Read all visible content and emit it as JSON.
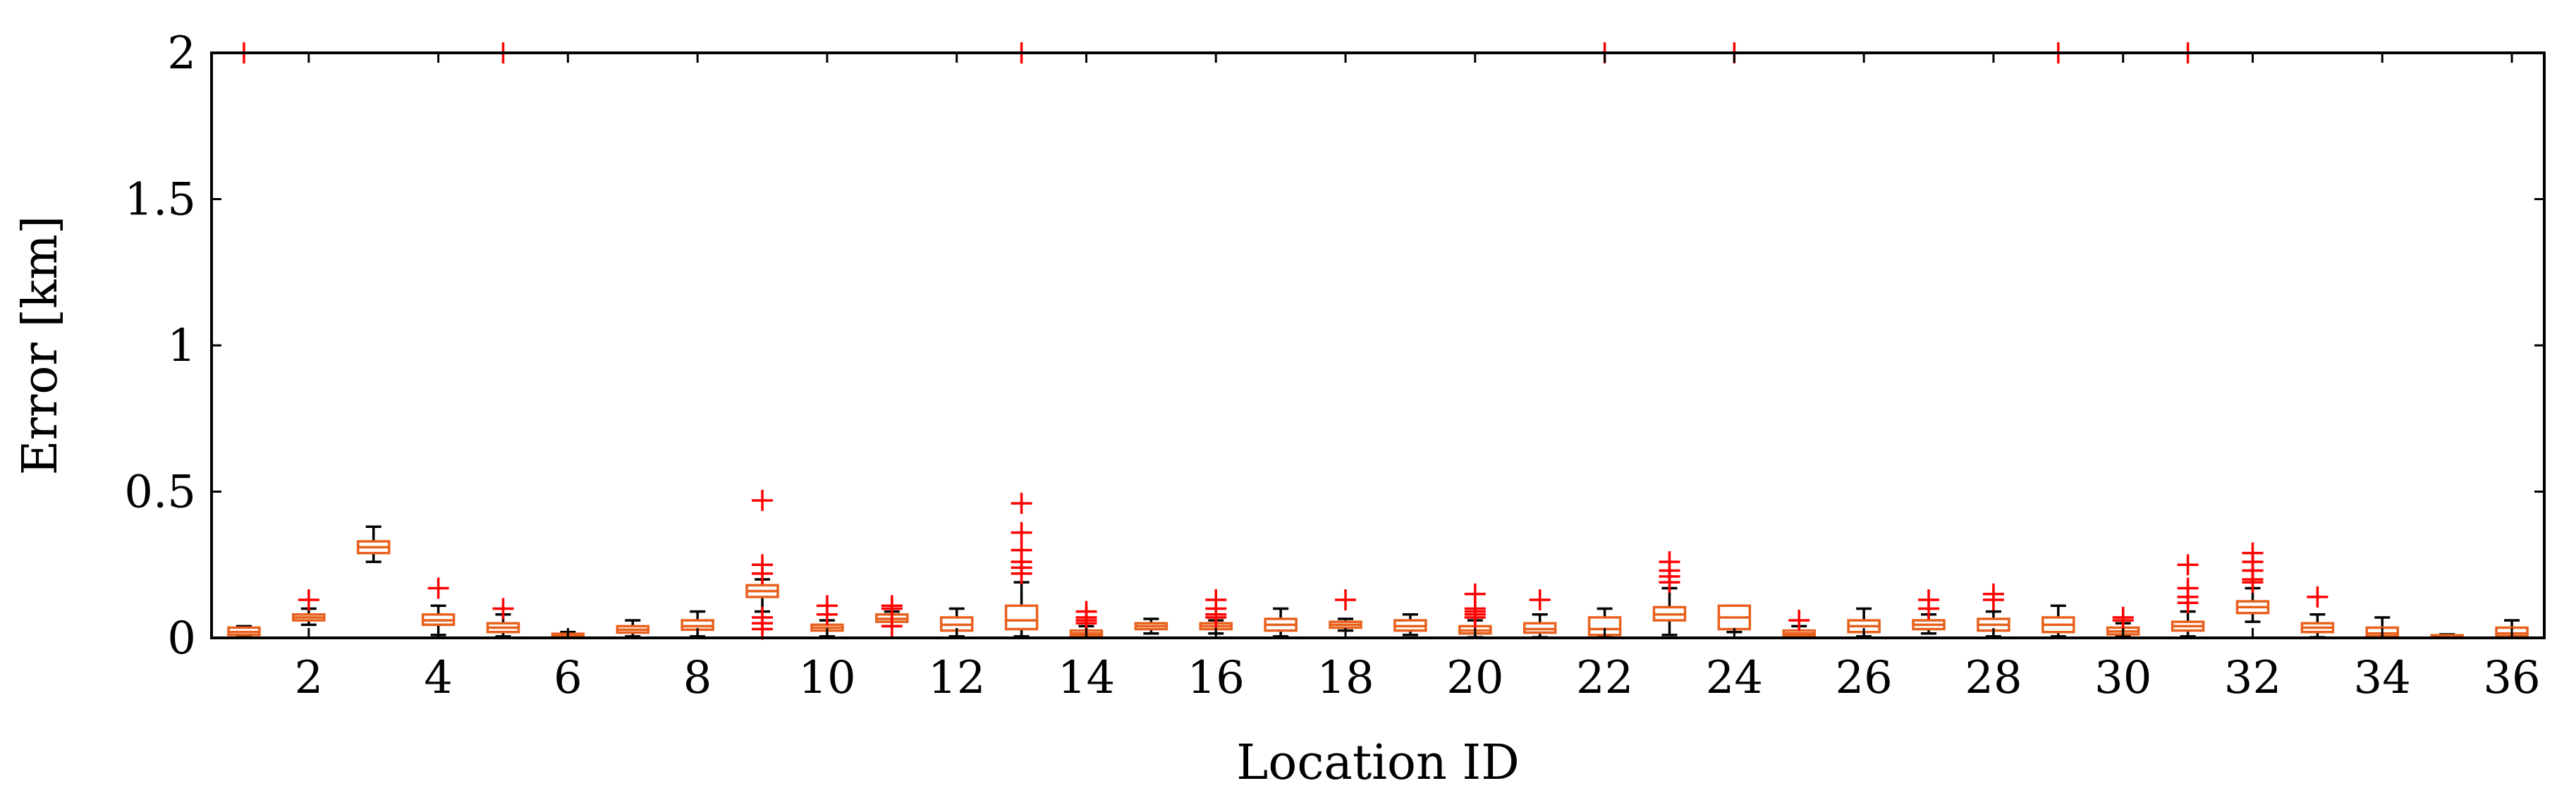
{
  "chart_data": {
    "type": "box",
    "title": "",
    "xlabel": "Location ID",
    "ylabel": "Error [km]",
    "xlim": [
      0.5,
      36.5
    ],
    "ylim": [
      0,
      2
    ],
    "x_ticks": [
      2,
      4,
      6,
      8,
      10,
      12,
      14,
      16,
      18,
      20,
      22,
      24,
      26,
      28,
      30,
      32,
      34,
      36
    ],
    "y_ticks": [
      0,
      0.5,
      1,
      1.5,
      2
    ],
    "y_tick_labels": [
      "0",
      "0.5",
      "1",
      "1.5",
      "2"
    ],
    "grid": false,
    "legend": "none",
    "colors": {
      "box": "#e8601c",
      "median": "#e8601c",
      "whisker": "#000000",
      "outlier": "#ff0000",
      "axis": "#000000"
    },
    "boxes": [
      {
        "id": 1,
        "lw": 0.005,
        "q1": 0.01,
        "median": 0.02,
        "q3": 0.035,
        "uw": 0.04,
        "outliers": [
          2.0
        ]
      },
      {
        "id": 2,
        "lw": 0.045,
        "q1": 0.06,
        "median": 0.07,
        "q3": 0.08,
        "uw": 0.1,
        "outliers": [
          0.13
        ]
      },
      {
        "id": 3,
        "lw": 0.26,
        "q1": 0.29,
        "median": 0.31,
        "q3": 0.33,
        "uw": 0.38,
        "outliers": []
      },
      {
        "id": 4,
        "lw": 0.01,
        "q1": 0.045,
        "median": 0.06,
        "q3": 0.08,
        "uw": 0.11,
        "outliers": [
          0.17
        ]
      },
      {
        "id": 5,
        "lw": 0.005,
        "q1": 0.02,
        "median": 0.035,
        "q3": 0.05,
        "uw": 0.08,
        "outliers": [
          0.1,
          2.0
        ]
      },
      {
        "id": 6,
        "lw": 0.002,
        "q1": 0.006,
        "median": 0.01,
        "q3": 0.014,
        "uw": 0.02,
        "outliers": []
      },
      {
        "id": 7,
        "lw": 0.005,
        "q1": 0.018,
        "median": 0.028,
        "q3": 0.04,
        "uw": 0.06,
        "outliers": []
      },
      {
        "id": 8,
        "lw": 0.005,
        "q1": 0.028,
        "median": 0.04,
        "q3": 0.06,
        "uw": 0.09,
        "outliers": []
      },
      {
        "id": 9,
        "lw": 0.09,
        "q1": 0.14,
        "median": 0.16,
        "q3": 0.18,
        "uw": 0.2,
        "outliers": [
          0.47,
          0.25,
          0.22,
          0.07,
          0.05,
          0.03
        ]
      },
      {
        "id": 10,
        "lw": 0.005,
        "q1": 0.025,
        "median": 0.035,
        "q3": 0.045,
        "uw": 0.06,
        "outliers": [
          0.11,
          0.08
        ]
      },
      {
        "id": 11,
        "lw": 0.04,
        "q1": 0.055,
        "median": 0.065,
        "q3": 0.08,
        "uw": 0.09,
        "outliers": [
          0.11,
          0.1,
          0.04
        ]
      },
      {
        "id": 12,
        "lw": 0.005,
        "q1": 0.025,
        "median": 0.045,
        "q3": 0.07,
        "uw": 0.1,
        "outliers": []
      },
      {
        "id": 13,
        "lw": 0.005,
        "q1": 0.03,
        "median": 0.06,
        "q3": 0.11,
        "uw": 0.19,
        "outliers": [
          2.0,
          0.46,
          0.36,
          0.3,
          0.26,
          0.24,
          0.22
        ]
      },
      {
        "id": 14,
        "lw": 0.002,
        "q1": 0.008,
        "median": 0.015,
        "q3": 0.025,
        "uw": 0.04,
        "outliers": [
          0.09,
          0.07,
          0.06,
          0.05
        ]
      },
      {
        "id": 15,
        "lw": 0.015,
        "q1": 0.03,
        "median": 0.04,
        "q3": 0.05,
        "uw": 0.065,
        "outliers": []
      },
      {
        "id": 16,
        "lw": 0.015,
        "q1": 0.03,
        "median": 0.04,
        "q3": 0.05,
        "uw": 0.06,
        "outliers": [
          0.13,
          0.1,
          0.08,
          0.07
        ]
      },
      {
        "id": 17,
        "lw": 0.005,
        "q1": 0.025,
        "median": 0.045,
        "q3": 0.065,
        "uw": 0.1,
        "outliers": []
      },
      {
        "id": 18,
        "lw": 0.025,
        "q1": 0.035,
        "median": 0.045,
        "q3": 0.055,
        "uw": 0.065,
        "outliers": [
          0.13
        ]
      },
      {
        "id": 19,
        "lw": 0.01,
        "q1": 0.025,
        "median": 0.04,
        "q3": 0.06,
        "uw": 0.08,
        "outliers": []
      },
      {
        "id": 20,
        "lw": 0.002,
        "q1": 0.015,
        "median": 0.025,
        "q3": 0.04,
        "uw": 0.06,
        "outliers": [
          0.15,
          0.1,
          0.09,
          0.08,
          0.07
        ]
      },
      {
        "id": 21,
        "lw": 0.002,
        "q1": 0.018,
        "median": 0.03,
        "q3": 0.05,
        "uw": 0.08,
        "outliers": [
          0.13
        ]
      },
      {
        "id": 22,
        "lw": 0.002,
        "q1": 0.01,
        "median": 0.03,
        "q3": 0.07,
        "uw": 0.1,
        "outliers": [
          2.0
        ]
      },
      {
        "id": 23,
        "lw": 0.01,
        "q1": 0.06,
        "median": 0.08,
        "q3": 0.105,
        "uw": 0.17,
        "outliers": [
          0.26,
          0.23,
          0.21,
          0.19
        ]
      },
      {
        "id": 24,
        "lw": 0.02,
        "q1": 0.03,
        "median": 0.07,
        "q3": 0.11,
        "uw": 0.11,
        "outliers": [
          2.0
        ]
      },
      {
        "id": 25,
        "lw": 0.002,
        "q1": 0.008,
        "median": 0.015,
        "q3": 0.025,
        "uw": 0.04,
        "outliers": [
          0.06
        ]
      },
      {
        "id": 26,
        "lw": 0.005,
        "q1": 0.02,
        "median": 0.04,
        "q3": 0.06,
        "uw": 0.1,
        "outliers": []
      },
      {
        "id": 27,
        "lw": 0.015,
        "q1": 0.03,
        "median": 0.045,
        "q3": 0.06,
        "uw": 0.08,
        "outliers": [
          0.13,
          0.1
        ]
      },
      {
        "id": 28,
        "lw": 0.005,
        "q1": 0.025,
        "median": 0.045,
        "q3": 0.065,
        "uw": 0.09,
        "outliers": [
          0.15,
          0.13
        ]
      },
      {
        "id": 29,
        "lw": 0.005,
        "q1": 0.02,
        "median": 0.045,
        "q3": 0.07,
        "uw": 0.11,
        "outliers": [
          2.0
        ]
      },
      {
        "id": 30,
        "lw": 0.005,
        "q1": 0.012,
        "median": 0.022,
        "q3": 0.035,
        "uw": 0.05,
        "outliers": [
          0.07,
          0.06
        ]
      },
      {
        "id": 31,
        "lw": 0.005,
        "q1": 0.025,
        "median": 0.04,
        "q3": 0.055,
        "uw": 0.09,
        "outliers": [
          2.0,
          0.25,
          0.17,
          0.14,
          0.12
        ]
      },
      {
        "id": 32,
        "lw": 0.055,
        "q1": 0.085,
        "median": 0.105,
        "q3": 0.125,
        "uw": 0.17,
        "outliers": [
          0.29,
          0.26,
          0.23,
          0.2,
          0.19
        ]
      },
      {
        "id": 33,
        "lw": 0.002,
        "q1": 0.02,
        "median": 0.035,
        "q3": 0.05,
        "uw": 0.08,
        "outliers": [
          0.14
        ]
      },
      {
        "id": 34,
        "lw": 0.002,
        "q1": 0.006,
        "median": 0.015,
        "q3": 0.035,
        "uw": 0.07,
        "outliers": []
      },
      {
        "id": 35,
        "lw": 0.001,
        "q1": 0.003,
        "median": 0.006,
        "q3": 0.009,
        "uw": 0.012,
        "outliers": []
      },
      {
        "id": 36,
        "lw": 0.002,
        "q1": 0.006,
        "median": 0.015,
        "q3": 0.035,
        "uw": 0.06,
        "outliers": []
      }
    ]
  }
}
